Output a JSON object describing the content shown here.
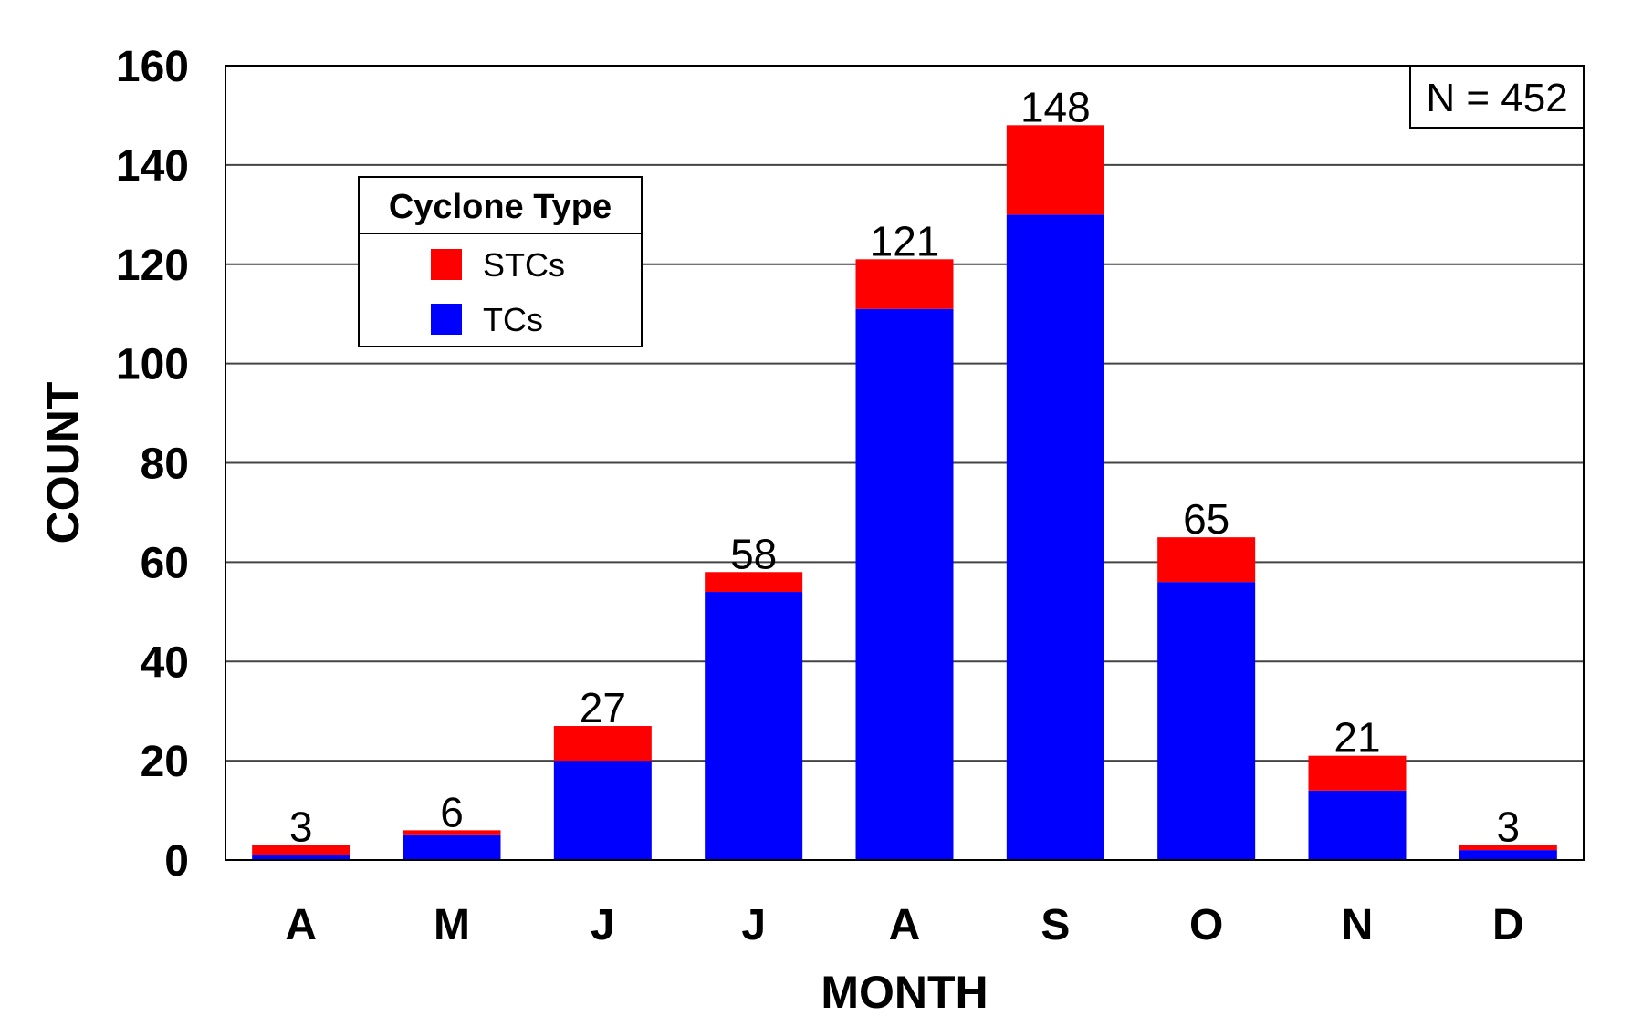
{
  "chart_data": {
    "type": "bar",
    "stacked": true,
    "categories": [
      "A",
      "M",
      "J",
      "J",
      "A",
      "S",
      "O",
      "N",
      "D"
    ],
    "series": [
      {
        "name": "TCs",
        "color": "#0000ff",
        "values": [
          1,
          5,
          20,
          54,
          111,
          130,
          56,
          14,
          2
        ]
      },
      {
        "name": "STCs",
        "color": "#ff0000",
        "values": [
          2,
          1,
          7,
          4,
          10,
          18,
          9,
          7,
          1
        ]
      }
    ],
    "totals": [
      3,
      6,
      27,
      58,
      121,
      148,
      65,
      21,
      3
    ],
    "xlabel": "MONTH",
    "ylabel": "COUNT",
    "ylim": [
      0,
      160
    ],
    "yticks": [
      "0",
      "20",
      "40",
      "60",
      "80",
      "100",
      "120",
      "140",
      "160"
    ],
    "grid": true,
    "legend": {
      "title": "Cyclone Type",
      "placement": "upper-left",
      "items": [
        {
          "label": "STCs",
          "color": "#ff0000"
        },
        {
          "label": "TCs",
          "color": "#0000ff"
        }
      ]
    },
    "annotation": "N = 452"
  }
}
